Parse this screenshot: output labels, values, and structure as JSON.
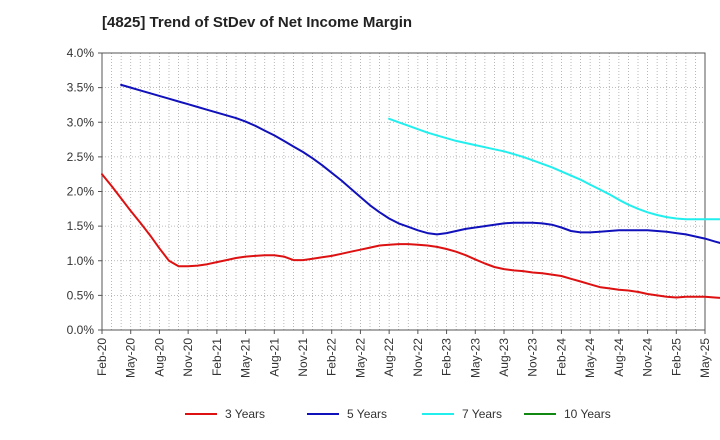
{
  "chart_data": {
    "type": "line",
    "title": "[4825]  Trend of StDev of Net Income Margin",
    "xlabel": "",
    "ylabel": "",
    "x_ticks": [
      "Feb-20",
      "May-20",
      "Aug-20",
      "Nov-20",
      "Feb-21",
      "May-21",
      "Aug-21",
      "Nov-21",
      "Feb-22",
      "May-22",
      "Aug-22",
      "Nov-22",
      "Feb-23",
      "May-23",
      "Aug-23",
      "Nov-23",
      "Feb-24",
      "May-24",
      "Aug-24",
      "Nov-24",
      "Feb-25",
      "May-25"
    ],
    "y_ticks": [
      "0.0%",
      "0.5%",
      "1.0%",
      "1.5%",
      "2.0%",
      "2.5%",
      "3.0%",
      "3.5%",
      "4.0%"
    ],
    "ylim": [
      0,
      4.0
    ],
    "y_unit": "%",
    "grid": true,
    "legend_position": "bottom",
    "series": [
      {
        "name": "3 Years",
        "color": "#dd1111",
        "start": "Feb-20",
        "values": [
          2.25,
          2.08,
          1.9,
          1.72,
          1.55,
          1.37,
          1.18,
          1.0,
          0.92,
          0.92,
          0.93,
          0.95,
          0.98,
          1.01,
          1.04,
          1.06,
          1.07,
          1.08,
          1.08,
          1.06,
          1.01,
          1.01,
          1.03,
          1.05,
          1.07,
          1.1,
          1.13,
          1.16,
          1.19,
          1.22,
          1.23,
          1.24,
          1.24,
          1.23,
          1.22,
          1.2,
          1.17,
          1.13,
          1.08,
          1.02,
          0.96,
          0.91,
          0.88,
          0.86,
          0.85,
          0.83,
          0.82,
          0.8,
          0.78,
          0.74,
          0.7,
          0.66,
          0.62,
          0.6,
          0.58,
          0.57,
          0.55,
          0.52,
          0.5,
          0.48,
          0.47,
          0.48,
          0.48,
          0.48,
          0.47,
          0.46,
          0.45,
          0.44,
          0.45,
          0.49
        ]
      },
      {
        "name": "5 Years",
        "color": "#1111bb",
        "start": "Feb-20",
        "values": [
          null,
          null,
          3.54,
          3.5,
          3.46,
          3.42,
          3.38,
          3.34,
          3.3,
          3.26,
          3.22,
          3.18,
          3.14,
          3.1,
          3.06,
          3.01,
          2.95,
          2.88,
          2.81,
          2.73,
          2.65,
          2.57,
          2.48,
          2.38,
          2.27,
          2.16,
          2.04,
          1.92,
          1.8,
          1.7,
          1.61,
          1.54,
          1.49,
          1.44,
          1.4,
          1.38,
          1.4,
          1.43,
          1.46,
          1.48,
          1.5,
          1.52,
          1.54,
          1.55,
          1.55,
          1.55,
          1.54,
          1.52,
          1.48,
          1.43,
          1.41,
          1.41,
          1.42,
          1.43,
          1.44,
          1.44,
          1.44,
          1.44,
          1.43,
          1.42,
          1.4,
          1.38,
          1.35,
          1.32,
          1.28,
          1.24,
          1.19,
          1.14,
          1.08,
          1.02,
          0.96
        ]
      },
      {
        "name": "7 Years",
        "color": "#22eeee",
        "start": "Feb-20",
        "values": [
          null,
          null,
          null,
          null,
          null,
          null,
          null,
          null,
          null,
          null,
          null,
          null,
          null,
          null,
          null,
          null,
          null,
          null,
          null,
          null,
          null,
          null,
          null,
          null,
          null,
          null,
          null,
          null,
          null,
          null,
          3.05,
          3.0,
          2.95,
          2.9,
          2.85,
          2.81,
          2.77,
          2.73,
          2.7,
          2.67,
          2.64,
          2.61,
          2.58,
          2.54,
          2.5,
          2.45,
          2.4,
          2.35,
          2.29,
          2.23,
          2.17,
          2.1,
          2.03,
          1.96,
          1.88,
          1.81,
          1.75,
          1.7,
          1.66,
          1.63,
          1.61,
          1.6,
          1.6,
          1.6,
          1.6,
          1.6,
          1.6,
          1.6,
          1.6,
          1.6
        ]
      },
      {
        "name": "10 Years",
        "color": "#118811",
        "start": "Feb-20",
        "values": []
      }
    ]
  }
}
